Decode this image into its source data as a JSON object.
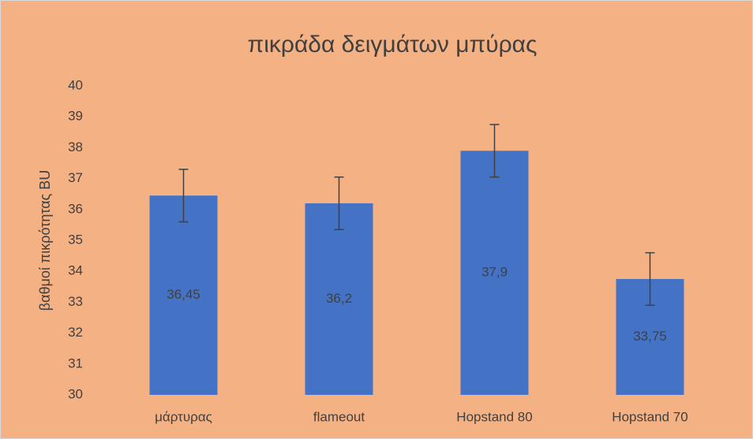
{
  "chart_data": {
    "type": "bar",
    "title": "πικράδα δειγμάτων μπύρας",
    "y_label": "βαθμοί πικρότητας BU",
    "categories": [
      "μάρτυρας",
      "flameout",
      "Hopstand 80",
      "Hopstand 70"
    ],
    "values": [
      36.45,
      36.2,
      37.9,
      33.75
    ],
    "value_labels": [
      "36,45",
      "36,2",
      "37,9",
      "33,75"
    ],
    "errors": [
      0.85,
      0.85,
      0.85,
      0.85
    ],
    "color": "#4472c4",
    "error_color": "#404040",
    "background": "#f4b183",
    "ylim": [
      30,
      40
    ],
    "yticks": [
      30,
      31,
      32,
      33,
      34,
      35,
      36,
      37,
      38,
      39,
      40
    ],
    "grid": false
  }
}
